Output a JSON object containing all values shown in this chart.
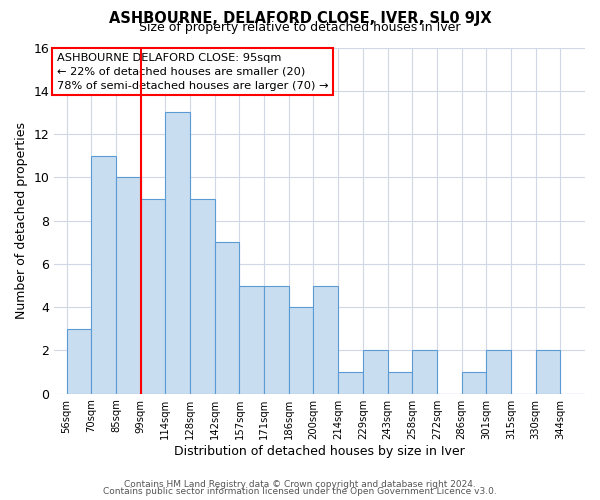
{
  "title": "ASHBOURNE, DELAFORD CLOSE, IVER, SL0 9JX",
  "subtitle": "Size of property relative to detached houses in Iver",
  "xlabel": "Distribution of detached houses by size in Iver",
  "ylabel": "Number of detached properties",
  "bin_labels": [
    "56sqm",
    "70sqm",
    "85sqm",
    "99sqm",
    "114sqm",
    "128sqm",
    "142sqm",
    "157sqm",
    "171sqm",
    "186sqm",
    "200sqm",
    "214sqm",
    "229sqm",
    "243sqm",
    "258sqm",
    "272sqm",
    "286sqm",
    "301sqm",
    "315sqm",
    "330sqm",
    "344sqm"
  ],
  "bar_values": [
    3,
    11,
    10,
    9,
    13,
    9,
    7,
    5,
    5,
    4,
    5,
    1,
    2,
    1,
    2,
    0,
    1,
    2,
    0,
    2,
    0
  ],
  "bar_color": "#c9ddf0",
  "bar_edge_color": "#5b9bd5",
  "vline_x": 3,
  "vline_color": "red",
  "annotation_text": "ASHBOURNE DELAFORD CLOSE: 95sqm\n← 22% of detached houses are smaller (20)\n78% of semi-detached houses are larger (70) →",
  "annotation_box_edge": "red",
  "ylim": [
    0,
    16
  ],
  "yticks": [
    0,
    2,
    4,
    6,
    8,
    10,
    12,
    14,
    16
  ],
  "footer1": "Contains HM Land Registry data © Crown copyright and database right 2024.",
  "footer2": "Contains public sector information licensed under the Open Government Licence v3.0.",
  "background_color": "#ffffff",
  "grid_color": "#d0d8e8"
}
